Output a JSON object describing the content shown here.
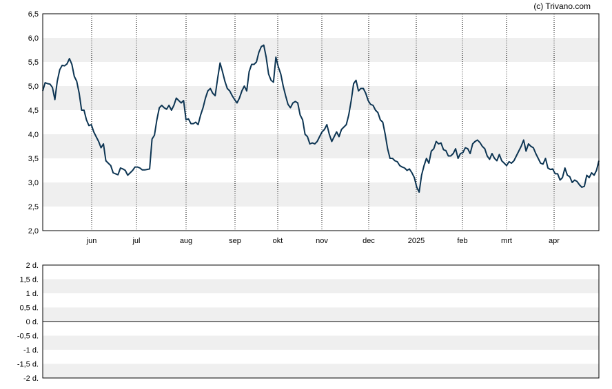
{
  "copyright": "(c) Trivano.com",
  "colors": {
    "line": "#0d3553",
    "band": "#efefef",
    "grid": "#000000",
    "frame": "#000000"
  },
  "chart_data": [
    {
      "type": "line",
      "title": "",
      "xlabel": "",
      "ylabel": "",
      "ylim": [
        2.0,
        6.5
      ],
      "yticks": [
        "2,0",
        "2,5",
        "3,0",
        "3,5",
        "4,0",
        "4,5",
        "5,0",
        "5,5",
        "6,0",
        "6,5"
      ],
      "xticks": [
        "jun",
        "jul",
        "aug",
        "sep",
        "okt",
        "nov",
        "dec",
        "2025",
        "feb",
        "mrt",
        "apr"
      ],
      "grid": "vertical dotted at month starts, alternating horizontal bands",
      "series": [
        {
          "values": [
            4.9,
            5.07,
            5.05,
            5.04,
            4.97,
            4.72,
            5.1,
            5.34,
            5.43,
            5.42,
            5.46,
            5.57,
            5.45,
            5.2,
            5.1,
            4.85,
            4.5,
            4.5,
            4.3,
            4.18,
            4.2,
            4.05,
            3.95,
            3.85,
            3.72,
            3.8,
            3.45,
            3.4,
            3.35,
            3.2,
            3.18,
            3.16,
            3.3,
            3.28,
            3.25,
            3.15,
            3.2,
            3.25,
            3.32,
            3.32,
            3.3,
            3.26,
            3.26,
            3.27,
            3.28,
            3.9,
            3.98,
            4.3,
            4.55,
            4.6,
            4.55,
            4.52,
            4.6,
            4.5,
            4.6,
            4.75,
            4.7,
            4.65,
            4.7,
            4.3,
            4.32,
            4.22,
            4.22,
            4.25,
            4.2,
            4.4,
            4.55,
            4.75,
            4.9,
            4.95,
            4.85,
            4.8,
            5.15,
            5.48,
            5.3,
            5.1,
            4.95,
            4.9,
            4.8,
            4.72,
            4.65,
            4.75,
            4.9,
            5.0,
            4.9,
            5.3,
            5.45,
            5.45,
            5.5,
            5.7,
            5.82,
            5.85,
            5.6,
            5.25,
            5.12,
            5.08,
            5.6,
            5.4,
            5.25,
            5.0,
            4.8,
            4.62,
            4.55,
            4.65,
            4.68,
            4.65,
            4.4,
            4.3,
            4.0,
            3.95,
            3.8,
            3.82,
            3.8,
            3.85,
            3.95,
            4.05,
            4.1,
            4.2,
            4.0,
            3.85,
            3.95,
            4.05,
            3.95,
            4.1,
            4.15,
            4.2,
            4.4,
            4.7,
            5.05,
            5.12,
            4.9,
            4.95,
            4.95,
            4.85,
            4.7,
            4.62,
            4.6,
            4.5,
            4.45,
            4.3,
            4.25,
            4.0,
            3.7,
            3.5,
            3.5,
            3.45,
            3.43,
            3.35,
            3.32,
            3.3,
            3.25,
            3.28,
            3.2,
            3.1,
            2.9,
            2.8,
            3.15,
            3.35,
            3.5,
            3.4,
            3.65,
            3.7,
            3.85,
            3.8,
            3.82,
            3.68,
            3.66,
            3.55,
            3.55,
            3.6,
            3.7,
            3.5,
            3.6,
            3.62,
            3.72,
            3.7,
            3.6,
            3.8,
            3.85,
            3.88,
            3.83,
            3.75,
            3.7,
            3.55,
            3.48,
            3.6,
            3.5,
            3.45,
            3.58,
            3.45,
            3.4,
            3.35,
            3.43,
            3.4,
            3.45,
            3.55,
            3.65,
            3.75,
            3.88,
            3.65,
            3.8,
            3.75,
            3.72,
            3.6,
            3.5,
            3.4,
            3.38,
            3.5,
            3.3,
            3.27,
            3.28,
            3.18,
            3.18,
            3.05,
            3.1,
            3.3,
            3.15,
            3.12,
            3.0,
            3.05,
            3.02,
            2.95,
            2.9,
            2.92,
            3.15,
            3.1,
            3.2,
            3.15,
            3.25,
            3.45
          ]
        }
      ]
    },
    {
      "type": "line",
      "title": "",
      "ylim": [
        -2,
        2
      ],
      "yticks": [
        "2 d.",
        "1,5 d.",
        "1 d.",
        "0,5 d.",
        "0 d.",
        "-0,5 d.",
        "-1 d.",
        "-1,5 d.",
        "-2 d."
      ],
      "series": []
    }
  ]
}
